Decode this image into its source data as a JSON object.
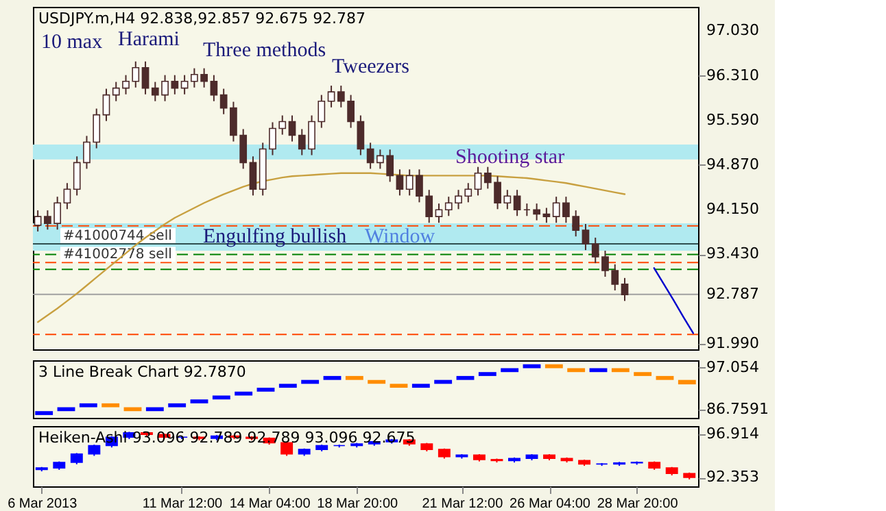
{
  "chart_data": [
    {
      "type": "candlestick",
      "title": "USDJPY.m,H4  92.838,92.857 92.675 92.787",
      "color": "#4d2b2b",
      "categories": [
        null,
        null,
        null,
        null,
        null,
        null,
        null,
        null,
        null,
        null,
        null,
        null,
        null,
        null,
        null,
        null,
        null,
        null,
        null,
        null,
        null,
        null,
        null,
        null,
        null,
        null,
        null,
        null,
        null,
        null,
        null,
        null,
        null,
        null,
        null,
        null,
        null,
        null,
        null,
        null,
        null,
        null,
        null,
        null,
        null,
        null,
        null,
        null,
        null,
        null,
        null,
        null,
        null,
        null,
        null,
        null,
        null,
        null,
        null,
        null,
        null,
        null,
        null,
        null,
        null,
        null,
        null,
        null
      ],
      "ohlc": [
        [
          93.9,
          94.14,
          93.8,
          94.04
        ],
        [
          94.04,
          94.14,
          93.83,
          93.93
        ],
        [
          93.93,
          94.36,
          93.83,
          94.26
        ],
        [
          94.26,
          94.58,
          94.16,
          94.48
        ],
        [
          94.48,
          95.01,
          94.38,
          94.91
        ],
        [
          94.91,
          95.34,
          94.81,
          95.24
        ],
        [
          95.24,
          95.78,
          95.14,
          95.68
        ],
        [
          95.68,
          96.1,
          95.58,
          96.0
        ],
        [
          96.0,
          96.21,
          95.9,
          96.11
        ],
        [
          96.11,
          96.32,
          96.01,
          96.22
        ],
        [
          96.22,
          96.54,
          96.12,
          96.44
        ],
        [
          96.44,
          96.54,
          96.01,
          96.11
        ],
        [
          96.11,
          96.21,
          95.9,
          96.0
        ],
        [
          96.0,
          96.32,
          95.9,
          96.22
        ],
        [
          96.22,
          96.32,
          96.01,
          96.11
        ],
        [
          96.11,
          96.32,
          96.01,
          96.22
        ],
        [
          96.22,
          96.43,
          96.12,
          96.33
        ],
        [
          96.33,
          96.43,
          96.12,
          96.22
        ],
        [
          96.22,
          96.32,
          95.9,
          96.0
        ],
        [
          96.0,
          96.1,
          95.69,
          95.79
        ],
        [
          95.79,
          95.89,
          95.25,
          95.35
        ],
        [
          95.35,
          95.45,
          94.81,
          94.91
        ],
        [
          94.91,
          95.01,
          94.38,
          94.48
        ],
        [
          94.48,
          95.23,
          94.38,
          95.13
        ],
        [
          95.13,
          95.56,
          95.03,
          95.46
        ],
        [
          95.46,
          95.67,
          95.36,
          95.57
        ],
        [
          95.57,
          95.67,
          95.25,
          95.35
        ],
        [
          95.35,
          95.45,
          95.03,
          95.13
        ],
        [
          95.13,
          95.67,
          95.03,
          95.57
        ],
        [
          95.57,
          96.0,
          95.47,
          95.9
        ],
        [
          95.9,
          96.15,
          95.8,
          96.05
        ],
        [
          96.05,
          96.15,
          95.8,
          95.9
        ],
        [
          95.9,
          96.0,
          95.47,
          95.57
        ],
        [
          95.57,
          95.67,
          95.03,
          95.13
        ],
        [
          95.13,
          95.23,
          94.81,
          94.91
        ],
        [
          94.91,
          95.12,
          94.81,
          95.02
        ],
        [
          95.02,
          95.12,
          94.6,
          94.7
        ],
        [
          94.7,
          94.8,
          94.38,
          94.48
        ],
        [
          94.48,
          94.8,
          94.38,
          94.7
        ],
        [
          94.7,
          94.8,
          94.27,
          94.37
        ],
        [
          94.37,
          94.47,
          93.94,
          94.04
        ],
        [
          94.04,
          94.25,
          93.94,
          94.15
        ],
        [
          94.15,
          94.36,
          94.05,
          94.26
        ],
        [
          94.26,
          94.47,
          94.16,
          94.37
        ],
        [
          94.37,
          94.58,
          94.27,
          94.48
        ],
        [
          94.48,
          94.84,
          94.38,
          94.74
        ],
        [
          94.74,
          94.84,
          94.49,
          94.59
        ],
        [
          94.59,
          94.69,
          94.16,
          94.26
        ],
        [
          94.26,
          94.47,
          94.16,
          94.37
        ],
        [
          94.37,
          94.47,
          94.05,
          94.15
        ],
        [
          94.15,
          94.25,
          94.05,
          94.15
        ],
        [
          94.15,
          94.25,
          93.98,
          94.08
        ],
        [
          94.08,
          94.18,
          93.94,
          94.04
        ],
        [
          94.04,
          94.36,
          93.94,
          94.26
        ],
        [
          94.26,
          94.36,
          93.94,
          94.04
        ],
        [
          94.04,
          94.14,
          93.72,
          93.82
        ],
        [
          93.82,
          93.92,
          93.5,
          93.6
        ],
        [
          93.6,
          93.7,
          93.29,
          93.39
        ],
        [
          93.39,
          93.49,
          93.07,
          93.17
        ],
        [
          93.17,
          93.27,
          92.85,
          92.95
        ],
        [
          92.95,
          93.05,
          92.68,
          92.78
        ],
        null,
        null,
        null,
        null,
        null,
        null,
        null
      ],
      "series": [
        {
          "type": "line",
          "color": "#c8a040",
          "values": [
            92.34,
            92.45,
            92.56,
            92.68,
            92.8,
            92.93,
            93.06,
            93.19,
            93.32,
            93.45,
            93.58,
            93.7,
            93.81,
            93.92,
            94.02,
            94.1,
            94.18,
            94.26,
            94.33,
            94.4,
            94.46,
            94.52,
            94.57,
            94.61,
            94.64,
            94.67,
            94.69,
            94.7,
            94.71,
            94.72,
            94.73,
            94.74,
            94.74,
            94.74,
            94.74,
            94.73,
            94.72,
            94.71,
            94.7,
            94.7,
            94.7,
            94.7,
            94.7,
            94.7,
            94.7,
            94.7,
            94.7,
            94.69,
            94.68,
            94.67,
            94.66,
            94.64,
            94.62,
            94.6,
            94.58,
            94.55,
            94.52,
            94.49,
            94.46,
            94.43,
            94.4,
            null,
            null,
            null,
            null,
            null,
            null,
            null
          ]
        },
        {
          "type": "line",
          "color": "#0000cc",
          "values": [
            null,
            null,
            null,
            null,
            null,
            null,
            null,
            null,
            null,
            null,
            null,
            null,
            null,
            null,
            null,
            null,
            null,
            null,
            null,
            null,
            null,
            null,
            null,
            null,
            null,
            null,
            null,
            null,
            null,
            null,
            null,
            null,
            null,
            null,
            null,
            null,
            null,
            null,
            null,
            null,
            null,
            null,
            null,
            null,
            null,
            null,
            null,
            null,
            null,
            null,
            null,
            null,
            null,
            null,
            null,
            null,
            null,
            null,
            null,
            null,
            null,
            null,
            null,
            93.21,
            92.95,
            92.69,
            92.42,
            92.16
          ]
        }
      ],
      "ylim": [
        91.9,
        97.42
      ],
      "yticks": [
        {
          "value": 97.03,
          "label": "97.030"
        },
        {
          "value": 96.31,
          "label": "96.310"
        },
        {
          "value": 95.59,
          "label": "95.590"
        },
        {
          "value": 94.87,
          "label": "94.870"
        },
        {
          "value": 94.15,
          "label": "94.150"
        },
        {
          "value": 93.43,
          "label": "93.430"
        },
        92.787,
        {
          "value": 91.99,
          "label": "91.990"
        }
      ],
      "bands": [
        {
          "axis": "y",
          "from": 94.96,
          "to": 95.2,
          "color": "#b0eaf0"
        },
        {
          "axis": "y",
          "from": 93.49,
          "to": 93.93,
          "color": "#b0eaf0"
        }
      ],
      "ref_lines": [
        {
          "axis": "y",
          "value": 93.89,
          "color": "#ff4500",
          "line_style": "dashed"
        },
        {
          "axis": "y",
          "value": 93.6,
          "label": "#41000744 sell",
          "color": "#2f4f4f",
          "line_style": "solid"
        },
        {
          "axis": "y",
          "value": 93.43,
          "color": "#008000",
          "line_style": "dashed"
        },
        {
          "axis": "y",
          "value": 93.3,
          "label": "#41002778 sell",
          "color": "#ff4500",
          "line_style": "dashed"
        },
        {
          "axis": "y",
          "value": 93.19,
          "color": "#008000",
          "line_style": "dashed"
        },
        {
          "axis": "y",
          "value": 92.787,
          "color": "#a0a0a0",
          "line_style": "solid"
        },
        {
          "axis": "y",
          "value": 92.14,
          "color": "#ff4500",
          "line_style": "dashed"
        }
      ],
      "annotations": [
        "10 max",
        "Harami",
        "Three methods",
        "Tweezers",
        "Shooting star",
        "Engulfing bullish",
        "Window"
      ],
      "tick_labels": "y",
      "grid": false
    },
    {
      "type": "bar",
      "title": "3 Line Break Chart 92.7870",
      "categories": [
        null,
        null,
        null,
        null,
        null,
        null,
        null,
        null,
        null,
        null,
        null,
        null,
        null,
        null,
        null,
        null,
        null,
        null,
        null,
        null,
        null,
        null,
        null,
        null,
        null,
        null,
        null,
        null,
        null,
        null
      ],
      "base": [
        85.39,
        86.35,
        87.31,
        88.27,
        87.31,
        86.35,
        87.31,
        88.27,
        89.23,
        90.19,
        91.15,
        92.11,
        93.07,
        94.03,
        95.0,
        94.03,
        93.07,
        92.11,
        93.07,
        94.03,
        95.0,
        95.96,
        96.92,
        97.88,
        96.92,
        95.96,
        96.92,
        95.96,
        95.0,
        94.03
      ],
      "values": [
        0.96,
        0.96,
        0.96,
        -0.96,
        -0.96,
        0.96,
        0.96,
        0.96,
        0.96,
        0.96,
        0.96,
        0.96,
        0.96,
        0.97,
        -0.97,
        -0.96,
        -0.96,
        0.96,
        0.96,
        0.97,
        0.96,
        0.96,
        0.96,
        -0.96,
        -0.96,
        0.96,
        -0.96,
        -0.96,
        -0.97,
        -1.09
      ],
      "colors": [
        "#0000ff",
        "#0000ff",
        "#0000ff",
        "#ff8c00",
        "#ff8c00",
        "#0000ff",
        "#0000ff",
        "#0000ff",
        "#0000ff",
        "#0000ff",
        "#0000ff",
        "#0000ff",
        "#0000ff",
        "#0000ff",
        "#ff8c00",
        "#ff8c00",
        "#ff8c00",
        "#0000ff",
        "#0000ff",
        "#0000ff",
        "#0000ff",
        "#0000ff",
        "#0000ff",
        "#ff8c00",
        "#ff8c00",
        "#0000ff",
        "#ff8c00",
        "#ff8c00",
        "#ff8c00",
        "#ff8c00"
      ],
      "ylim": [
        84.7,
        98.86
      ],
      "yticks": [
        97.054,
        86.7591
      ],
      "tick_labels": "y",
      "grid": false
    },
    {
      "type": "candlestick",
      "title": "Heiken-Ashi 93.096 92.789 92.789 93.096 92.675",
      "categories": [
        "6 Mar 2013",
        null,
        null,
        null,
        null,
        null,
        null,
        null,
        "11 Mar 12:00",
        null,
        null,
        null,
        null,
        "14 Mar 04:00",
        null,
        null,
        null,
        null,
        "18 Mar 20:00",
        null,
        null,
        null,
        null,
        null,
        "21 Mar 12:00",
        null,
        null,
        null,
        null,
        "26 Mar 04:00",
        null,
        null,
        null,
        null,
        "28 Mar 20:00",
        null,
        null,
        null
      ],
      "ohlc": [
        [
          93.2,
          93.46,
          93.0,
          93.36
        ],
        [
          93.36,
          94.05,
          93.16,
          93.95
        ],
        [
          93.95,
          94.94,
          93.75,
          94.84
        ],
        [
          94.84,
          95.83,
          94.64,
          95.73
        ],
        [
          95.73,
          96.72,
          95.53,
          96.62
        ],
        [
          96.62,
          97.19,
          96.42,
          97.09
        ],
        [
          97.09,
          97.19,
          96.71,
          96.91
        ],
        [
          96.91,
          97.01,
          96.42,
          96.62
        ],
        [
          96.62,
          96.72,
          96.42,
          96.62
        ],
        [
          96.62,
          96.72,
          96.3,
          96.5
        ],
        [
          96.5,
          96.84,
          96.3,
          96.74
        ],
        [
          96.74,
          96.84,
          96.42,
          96.62
        ],
        [
          96.62,
          96.72,
          96.3,
          96.5
        ],
        [
          96.5,
          96.6,
          95.83,
          96.03
        ],
        [
          96.03,
          96.13,
          94.64,
          94.84
        ],
        [
          94.84,
          95.42,
          94.64,
          95.32
        ],
        [
          95.32,
          95.83,
          95.12,
          95.73
        ],
        [
          95.73,
          95.83,
          95.53,
          95.73
        ],
        [
          95.73,
          96.01,
          95.53,
          95.91
        ],
        [
          95.91,
          96.24,
          95.71,
          96.14
        ],
        [
          96.14,
          96.42,
          95.94,
          96.32
        ],
        [
          96.32,
          96.42,
          95.71,
          95.91
        ],
        [
          95.91,
          96.01,
          95.12,
          95.32
        ],
        [
          95.32,
          95.42,
          94.35,
          94.55
        ],
        [
          94.55,
          94.82,
          94.35,
          94.72
        ],
        [
          94.72,
          94.82,
          94.05,
          94.25
        ],
        [
          94.25,
          94.35,
          93.94,
          94.14
        ],
        [
          94.14,
          94.47,
          93.94,
          94.37
        ],
        [
          94.37,
          94.82,
          94.17,
          94.72
        ],
        [
          94.72,
          94.82,
          94.17,
          94.37
        ],
        [
          94.37,
          94.47,
          93.94,
          94.14
        ],
        [
          94.14,
          94.24,
          93.58,
          93.78
        ],
        [
          93.78,
          93.88,
          93.58,
          93.78
        ],
        [
          93.78,
          94.0,
          93.58,
          93.9
        ],
        [
          93.9,
          94.05,
          93.7,
          93.95
        ],
        [
          93.95,
          94.05,
          93.16,
          93.36
        ],
        [
          93.36,
          93.46,
          92.57,
          92.77
        ],
        [
          92.77,
          92.87,
          92.15,
          92.35
        ]
      ],
      "colors": [
        "#0000ff",
        "#0000ff",
        "#0000ff",
        "#0000ff",
        "#0000ff",
        "#0000ff",
        "#ff0000",
        "#ff0000",
        "#0000ff",
        "#ff0000",
        "#0000ff",
        "#ff0000",
        "#ff0000",
        "#ff0000",
        "#ff0000",
        "#0000ff",
        "#0000ff",
        "#0000ff",
        "#0000ff",
        "#0000ff",
        "#0000ff",
        "#ff0000",
        "#ff0000",
        "#ff0000",
        "#0000ff",
        "#ff0000",
        "#ff0000",
        "#0000ff",
        "#0000ff",
        "#ff0000",
        "#ff0000",
        "#ff0000",
        "#0000ff",
        "#0000ff",
        "#0000ff",
        "#ff0000",
        "#ff0000",
        "#ff0000"
      ],
      "ylim": [
        91.41,
        97.8
      ],
      "yticks": [
        96.914,
        92.353
      ],
      "grid": false
    }
  ]
}
